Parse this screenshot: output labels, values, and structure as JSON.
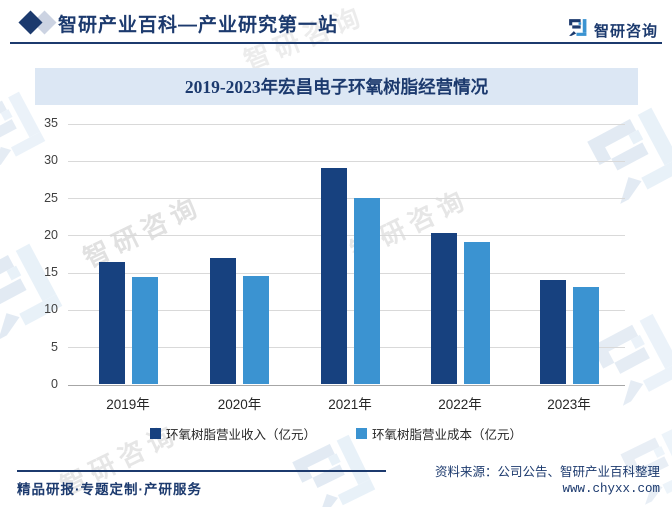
{
  "header": {
    "title": "智研产业百科—产业研究第一站",
    "brand": "智研咨询"
  },
  "chart_data": {
    "type": "bar",
    "title": "2019-2023年宏昌电子环氧树脂经营情况",
    "categories": [
      "2019年",
      "2020年",
      "2021年",
      "2022年",
      "2023年"
    ],
    "series": [
      {
        "name": "环氧树脂营业收入（亿元）",
        "color": "#17417f",
        "values": [
          16.3,
          16.9,
          29.0,
          20.3,
          13.9
        ]
      },
      {
        "name": "环氧树脂营业成本（亿元）",
        "color": "#3b93d1",
        "values": [
          14.4,
          14.5,
          25.0,
          19.0,
          13.0
        ]
      }
    ],
    "ylim": [
      0,
      35
    ],
    "ytick_step": 5,
    "grid": true,
    "legend_position": "bottom"
  },
  "footer": {
    "tagline": "精品研报·专题定制·产研服务",
    "source": "资料来源：公司公告、智研产业百科整理",
    "website": "www.chyxx.com"
  },
  "watermark": {
    "text": "智研咨询"
  },
  "colors": {
    "navy": "#1c3a6e",
    "band_bg": "#dce7f4",
    "gridline": "#d9d9d9",
    "bar_dark": "#17417f",
    "bar_light": "#3b93d1"
  }
}
